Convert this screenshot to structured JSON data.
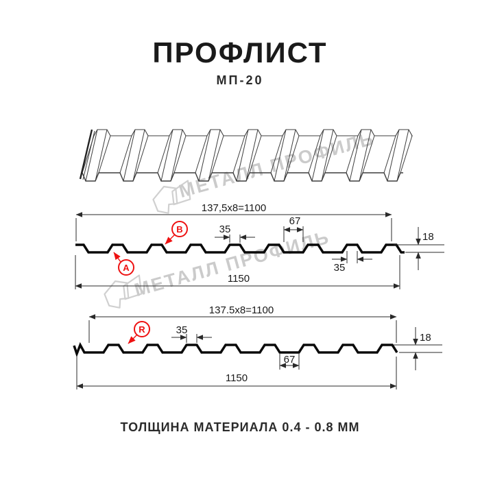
{
  "header": {
    "title": "ПРОФЛИСТ",
    "subtitle": "МП-20"
  },
  "watermark": {
    "text": "МЕТАЛЛ ПРОФИЛЬ"
  },
  "profile_top": {
    "pitch": "137,5x8=1100",
    "rib_width_top": "35",
    "valley_width": "67",
    "height": "18",
    "rib_width_bottom": "35",
    "overall_width": "1150",
    "marker_a": "A",
    "marker_b": "B"
  },
  "profile_bottom": {
    "pitch": "137.5x8=1100",
    "rib_width_top": "35",
    "height": "18",
    "valley_width": "67",
    "overall_width": "1150",
    "marker_r": "R"
  },
  "footer": {
    "text": "ТОЛЩИНА МАТЕРИАЛА 0.4 - 0.8 ММ"
  },
  "colors": {
    "ink": "#1a1a1a",
    "dim_line": "#2a2a2a",
    "red": "#ee1111",
    "watermark": "#cbcbcb"
  }
}
